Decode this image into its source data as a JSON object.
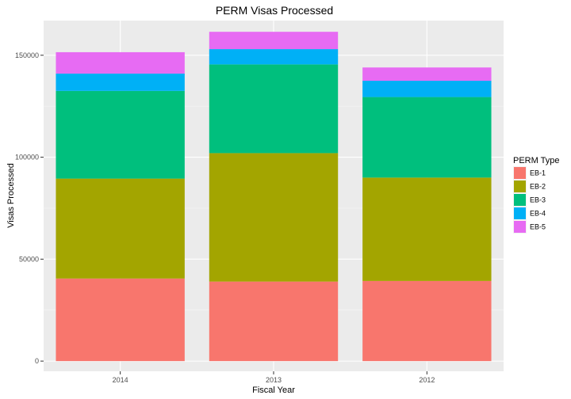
{
  "chart_data": {
    "type": "bar",
    "stacked": true,
    "title": "PERM Visas Processed",
    "xlabel": "Fiscal Year",
    "ylabel": "Visas Processed",
    "categories": [
      "2014",
      "2013",
      "2012"
    ],
    "ylim": [
      -5000,
      167000
    ],
    "yticks": [
      0,
      50000,
      100000,
      150000
    ],
    "ytick_labels": [
      "0",
      "50000",
      "100000",
      "150000"
    ],
    "legend": {
      "title": "PERM Type",
      "position": "right"
    },
    "grid": true,
    "series": [
      {
        "name": "EB-1",
        "color": "#F8766D",
        "values": [
          40500,
          39000,
          39300
        ]
      },
      {
        "name": "EB-2",
        "color": "#A3A500",
        "values": [
          49000,
          63000,
          50700
        ]
      },
      {
        "name": "EB-3",
        "color": "#00BF7D",
        "values": [
          43000,
          43500,
          39500
        ]
      },
      {
        "name": "EB-4",
        "color": "#00B0F6",
        "values": [
          8500,
          7500,
          8000
        ]
      },
      {
        "name": "EB-5",
        "color": "#E76BF3",
        "values": [
          10500,
          8500,
          6500
        ]
      }
    ]
  }
}
